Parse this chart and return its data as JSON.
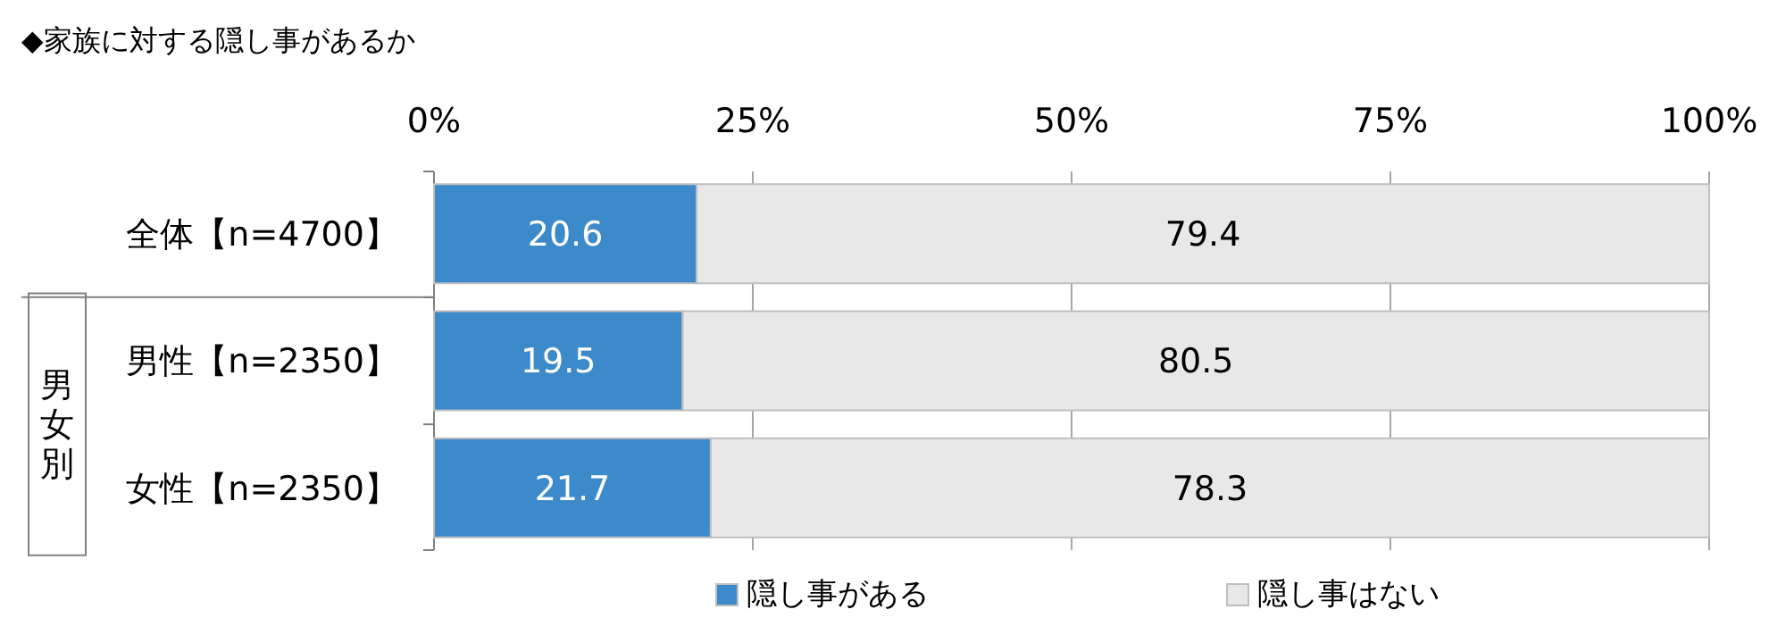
{
  "chart_data": {
    "type": "bar",
    "orientation": "horizontal",
    "stacked": true,
    "title": "◆家族に対する隠し事があるか",
    "categories": [
      "全体【n=4700】",
      "男性【n=2350】",
      "女性【n=2350】"
    ],
    "series": [
      {
        "name": "隠し事がある",
        "color": "#3d8acb",
        "values": [
          20.6,
          19.5,
          21.7
        ]
      },
      {
        "name": "隠し事はない",
        "color": "#e8e8e8",
        "values": [
          79.4,
          80.5,
          78.3
        ]
      }
    ],
    "xlim": [
      0,
      100
    ],
    "xticks": [
      {
        "value": 0,
        "label": "0%"
      },
      {
        "value": 25,
        "label": "25%"
      },
      {
        "value": 50,
        "label": "50%"
      },
      {
        "value": 75,
        "label": "75%"
      },
      {
        "value": 100,
        "label": "100%"
      }
    ],
    "annotations": [
      "男女別"
    ],
    "grid": "x",
    "legend": "bottom",
    "data_labels": true
  }
}
